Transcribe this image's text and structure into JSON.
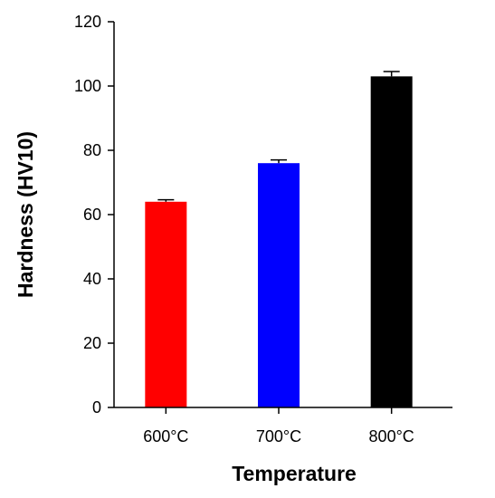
{
  "chart_data": {
    "type": "bar",
    "title": "",
    "xlabel": "Temperature",
    "ylabel": "Hardness (HV10)",
    "categories": [
      "600°C",
      "700°C",
      "800°C"
    ],
    "values": [
      64,
      76,
      103
    ],
    "errors": [
      0.6,
      1.0,
      1.5
    ],
    "colors": [
      "#ff0000",
      "#0000ff",
      "#000000"
    ],
    "ylim": [
      0,
      120
    ],
    "yticks": [
      0,
      20,
      40,
      60,
      80,
      100,
      120
    ],
    "ytick_labels": [
      "0",
      "20",
      "40",
      "60",
      "80",
      "100",
      "120"
    ],
    "grid": false,
    "legend": "none"
  }
}
